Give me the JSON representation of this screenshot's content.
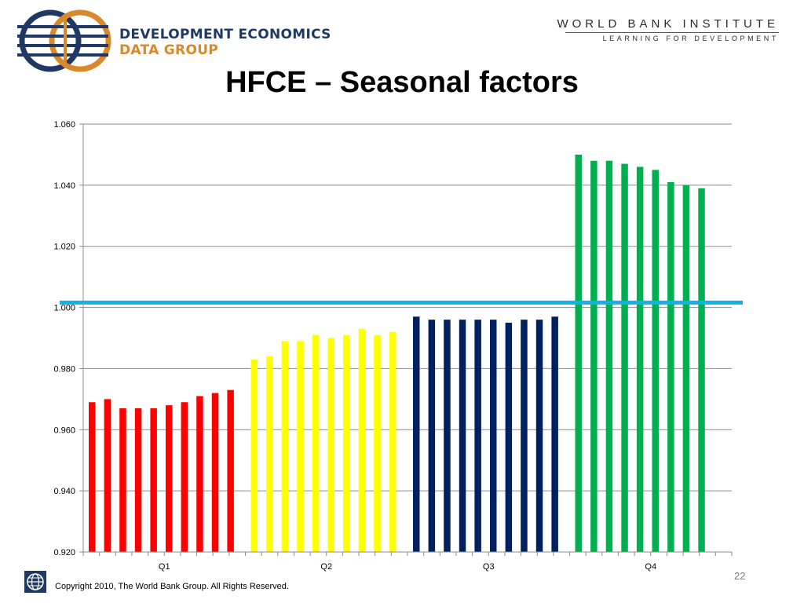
{
  "header": {
    "logo_line1": "DEVELOPMENT ECONOMICS",
    "logo_line2": "DATA GROUP",
    "institute_title": "WORLD BANK INSTITUTE",
    "institute_subtitle": "LEARNING FOR DEVELOPMENT"
  },
  "slide_title": "HFCE – Seasonal factors",
  "footer": {
    "copyright": "Copyright 2010, The World Bank Group. All Rights Reserved.",
    "page_number": "22"
  },
  "chart_data": {
    "type": "bar",
    "title": "",
    "xlabel": "",
    "ylabel": "",
    "ylim": [
      0.92,
      1.06
    ],
    "yticks": [
      "0.920",
      "0.940",
      "0.960",
      "0.980",
      "1.000",
      "1.020",
      "1.040",
      "1.060"
    ],
    "grid": true,
    "reference_line": {
      "value": 1.0016,
      "color": "#12b2e8"
    },
    "groups": [
      {
        "label": "Q1",
        "color": "#ff0000",
        "values": [
          0.969,
          0.97,
          0.967,
          0.967,
          0.967,
          0.968,
          0.969,
          0.971,
          0.972,
          0.973
        ]
      },
      {
        "label": "Q2",
        "color": "#ffff00",
        "values": [
          0.983,
          0.984,
          0.989,
          0.989,
          0.991,
          0.99,
          0.991,
          0.993,
          0.991,
          0.992
        ]
      },
      {
        "label": "Q3",
        "color": "#002060",
        "values": [
          0.997,
          0.996,
          0.996,
          0.996,
          0.996,
          0.996,
          0.995,
          0.996,
          0.996,
          0.997
        ]
      },
      {
        "label": "Q4",
        "color": "#00b050",
        "values": [
          1.05,
          1.048,
          1.048,
          1.047,
          1.046,
          1.045,
          1.041,
          1.04,
          1.039
        ]
      }
    ]
  }
}
